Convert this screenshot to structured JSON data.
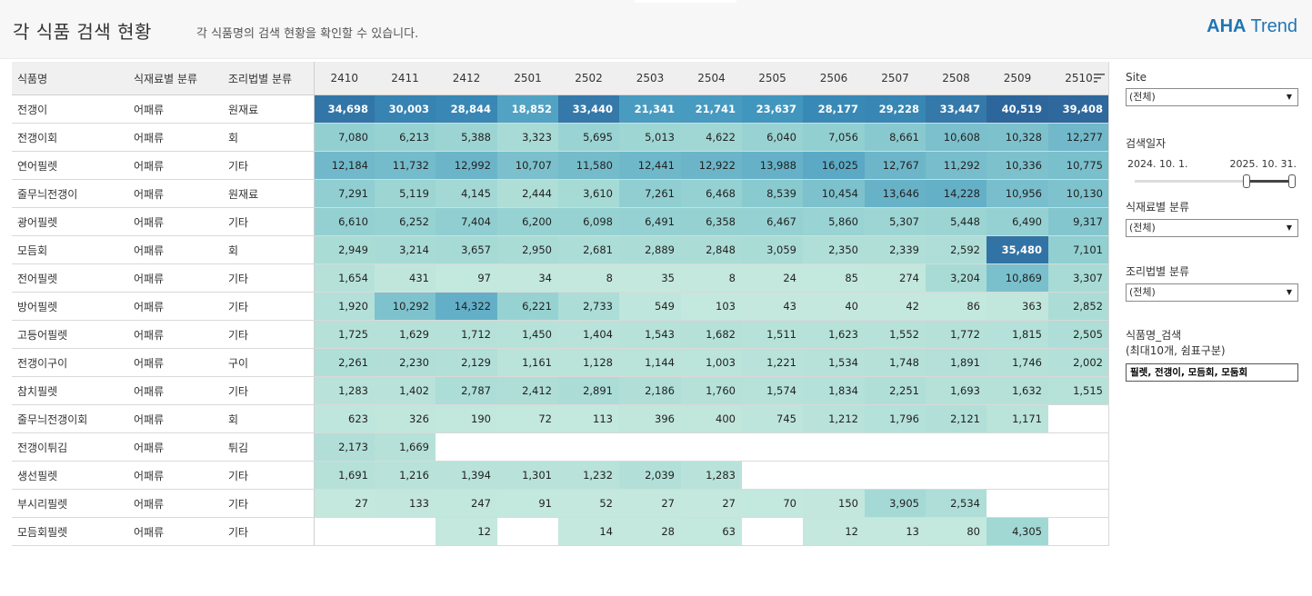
{
  "header": {
    "title": "각 식품 검색 현황",
    "subtitle": "각 식품명의 검색 현황을 확인할 수 있습니다.",
    "brand_bold": "AHA",
    "brand_light": "Trend",
    "brand_color": "#1f75b4"
  },
  "table": {
    "dim_headers": [
      "식품명",
      "식재료별 분류",
      "조리법별 분류"
    ],
    "months": [
      "2410",
      "2411",
      "2412",
      "2501",
      "2502",
      "2503",
      "2504",
      "2505",
      "2506",
      "2507",
      "2508",
      "2509",
      "2510"
    ],
    "rows": [
      {
        "name": "전갱이",
        "material": "어패류",
        "cooking": "원재료",
        "values": [
          "34,698",
          "30,003",
          "28,844",
          "18,852",
          "33,440",
          "21,341",
          "21,741",
          "23,637",
          "28,177",
          "29,228",
          "33,447",
          "40,519",
          "39,408"
        ]
      },
      {
        "name": "전갱이회",
        "material": "어패류",
        "cooking": "회",
        "values": [
          "7,080",
          "6,213",
          "5,388",
          "3,323",
          "5,695",
          "5,013",
          "4,622",
          "6,040",
          "7,056",
          "8,661",
          "10,608",
          "10,328",
          "12,277"
        ]
      },
      {
        "name": "연어필렛",
        "material": "어패류",
        "cooking": "기타",
        "values": [
          "12,184",
          "11,732",
          "12,992",
          "10,707",
          "11,580",
          "12,441",
          "12,922",
          "13,988",
          "16,025",
          "12,767",
          "11,292",
          "10,336",
          "10,775"
        ]
      },
      {
        "name": "줄무늬전갱이",
        "material": "어패류",
        "cooking": "원재료",
        "values": [
          "7,291",
          "5,119",
          "4,145",
          "2,444",
          "3,610",
          "7,261",
          "6,468",
          "8,539",
          "10,454",
          "13,646",
          "14,228",
          "10,956",
          "10,130"
        ]
      },
      {
        "name": "광어필렛",
        "material": "어패류",
        "cooking": "기타",
        "values": [
          "6,610",
          "6,252",
          "7,404",
          "6,200",
          "6,098",
          "6,491",
          "6,358",
          "6,467",
          "5,860",
          "5,307",
          "5,448",
          "6,490",
          "9,317"
        ]
      },
      {
        "name": "모듬회",
        "material": "어패류",
        "cooking": "회",
        "values": [
          "2,949",
          "3,214",
          "3,657",
          "2,950",
          "2,681",
          "2,889",
          "2,848",
          "3,059",
          "2,350",
          "2,339",
          "2,592",
          "35,480",
          "7,101"
        ]
      },
      {
        "name": "전어필렛",
        "material": "어패류",
        "cooking": "기타",
        "values": [
          "1,654",
          "431",
          "97",
          "34",
          "8",
          "35",
          "8",
          "24",
          "85",
          "274",
          "3,204",
          "10,869",
          "3,307"
        ]
      },
      {
        "name": "방어필렛",
        "material": "어패류",
        "cooking": "기타",
        "values": [
          "1,920",
          "10,292",
          "14,322",
          "6,221",
          "2,733",
          "549",
          "103",
          "43",
          "40",
          "42",
          "86",
          "363",
          "2,852"
        ]
      },
      {
        "name": "고등어필렛",
        "material": "어패류",
        "cooking": "기타",
        "values": [
          "1,725",
          "1,629",
          "1,712",
          "1,450",
          "1,404",
          "1,543",
          "1,682",
          "1,511",
          "1,623",
          "1,552",
          "1,772",
          "1,815",
          "2,505"
        ]
      },
      {
        "name": "전갱이구이",
        "material": "어패류",
        "cooking": "구이",
        "values": [
          "2,261",
          "2,230",
          "2,129",
          "1,161",
          "1,128",
          "1,144",
          "1,003",
          "1,221",
          "1,534",
          "1,748",
          "1,891",
          "1,746",
          "2,002"
        ]
      },
      {
        "name": "참치필렛",
        "material": "어패류",
        "cooking": "기타",
        "values": [
          "1,283",
          "1,402",
          "2,787",
          "2,412",
          "2,891",
          "2,186",
          "1,760",
          "1,574",
          "1,834",
          "2,251",
          "1,693",
          "1,632",
          "1,515"
        ]
      },
      {
        "name": "줄무늬전갱이회",
        "material": "어패류",
        "cooking": "회",
        "values": [
          "623",
          "326",
          "190",
          "72",
          "113",
          "396",
          "400",
          "745",
          "1,212",
          "1,796",
          "2,121",
          "1,171",
          ""
        ]
      },
      {
        "name": "전갱이튀김",
        "material": "어패류",
        "cooking": "튀김",
        "values": [
          "2,173",
          "1,669",
          "",
          "",
          "",
          "",
          "",
          "",
          "",
          "",
          "",
          "",
          ""
        ]
      },
      {
        "name": "생선필렛",
        "material": "어패류",
        "cooking": "기타",
        "values": [
          "1,691",
          "1,216",
          "1,394",
          "1,301",
          "1,232",
          "2,039",
          "1,283",
          "",
          "",
          "",
          "",
          "",
          ""
        ]
      },
      {
        "name": "부시리필렛",
        "material": "어패류",
        "cooking": "기타",
        "values": [
          "27",
          "133",
          "247",
          "91",
          "52",
          "27",
          "27",
          "70",
          "150",
          "3,905",
          "2,534",
          "",
          ""
        ]
      },
      {
        "name": "모듬회필렛",
        "material": "어패류",
        "cooking": "기타",
        "values": [
          "",
          "",
          "12",
          "",
          "14",
          "28",
          "63",
          "",
          "12",
          "13",
          "80",
          "4,305",
          ""
        ]
      }
    ]
  },
  "filters": {
    "site_label": "Site",
    "site_value": "(전체)",
    "date_label": "검색일자",
    "date_start": "2024. 10. 1.",
    "date_end": "2025. 10. 31.",
    "material_label": "식재료별 분류",
    "material_value": "(전체)",
    "cooking_label": "조리법별 분류",
    "cooking_value": "(전체)",
    "search_label": "식품명_검색",
    "search_hint": "(최대10개, 쉼표구분)",
    "search_value": "필렛, 전갱이, 모듬회, 모둠회"
  }
}
